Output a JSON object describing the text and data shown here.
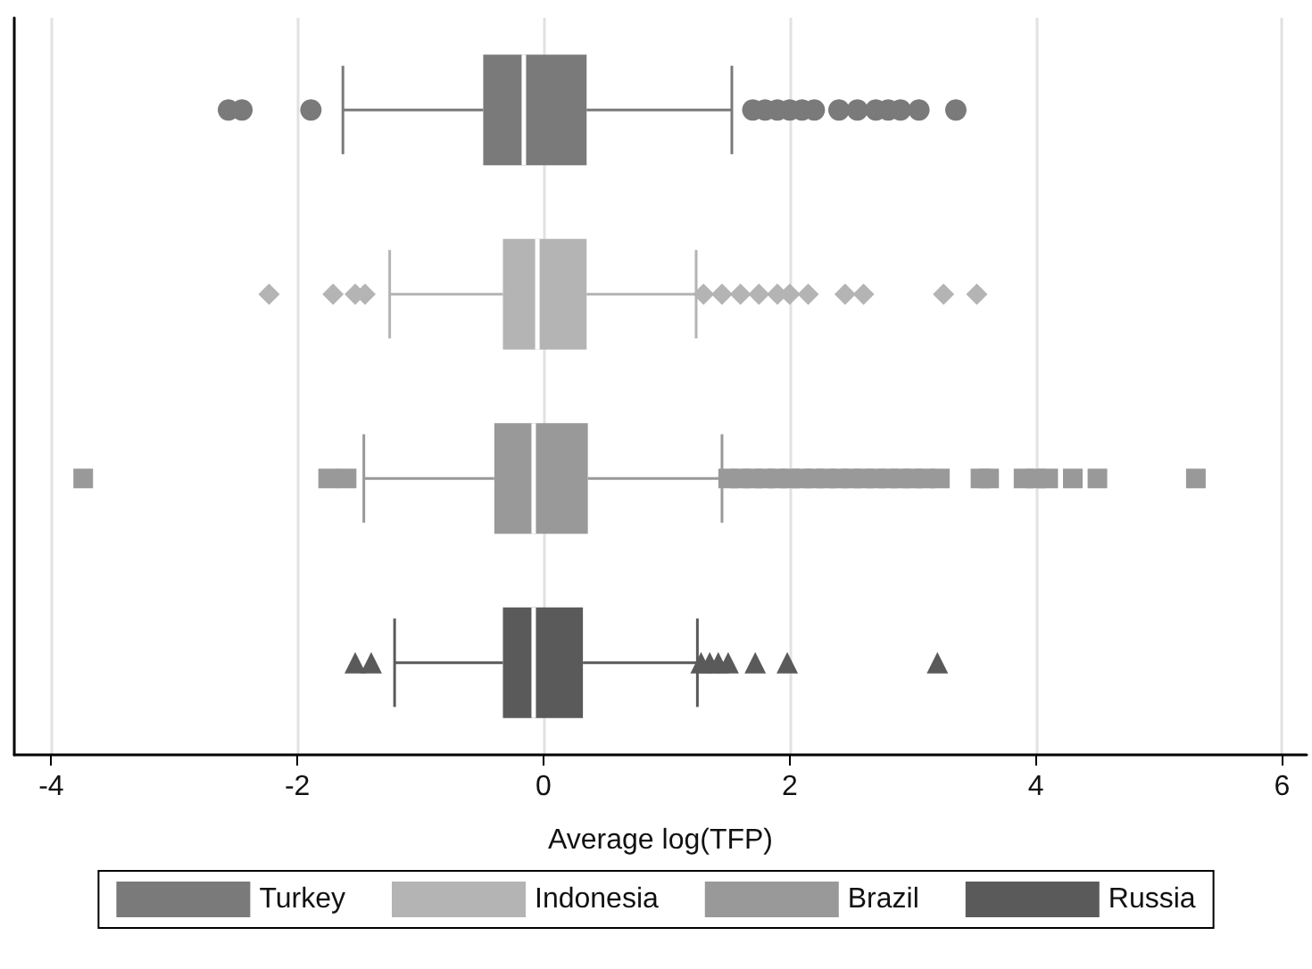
{
  "chart_data": {
    "type": "box",
    "orientation": "horizontal",
    "xlabel": "Average log(TFP)",
    "categories": [
      null,
      null,
      null,
      null
    ],
    "xlim": [
      -4.3,
      6.2
    ],
    "xticks": [
      -4,
      -2,
      0,
      2,
      4,
      6
    ],
    "grid": "x",
    "legend": "bottom",
    "tick_labels": "x",
    "series": [
      {
        "name": "Turkey",
        "color": "#7a7a7a",
        "marker": "circle",
        "boxes": [
          {
            "low": -1.63,
            "q1": -0.49,
            "median": -0.16,
            "q3": 0.35,
            "high": 1.53,
            "outliers": [
              -2.56,
              -2.45,
              -1.89,
              1.7,
              1.8,
              1.9,
              2.0,
              2.1,
              2.2,
              2.4,
              2.55,
              2.7,
              2.8,
              2.9,
              3.05,
              3.35
            ]
          },
          null,
          null,
          null
        ]
      },
      {
        "name": "Indonesia",
        "color": "#b4b4b4",
        "marker": "diamond",
        "boxes": [
          null,
          {
            "low": -1.25,
            "q1": -0.33,
            "median": -0.05,
            "q3": 0.35,
            "high": 1.24,
            "outliers": [
              -2.23,
              -1.71,
              -1.53,
              -1.45,
              1.3,
              1.45,
              1.6,
              1.75,
              1.9,
              2.0,
              2.15,
              2.45,
              2.6,
              3.25,
              3.52
            ]
          },
          null,
          null
        ]
      },
      {
        "name": "Brazil",
        "color": "#999999",
        "marker": "square",
        "boxes": [
          null,
          null,
          {
            "low": -1.46,
            "q1": -0.4,
            "median": -0.08,
            "q3": 0.36,
            "high": 1.45,
            "outliers": [
              -3.74,
              -1.75,
              -1.6,
              1.5,
              1.6,
              1.7,
              1.8,
              1.9,
              2.0,
              2.1,
              2.2,
              2.3,
              2.4,
              2.5,
              2.6,
              2.7,
              2.8,
              2.9,
              3.0,
              3.1,
              3.22,
              3.55,
              3.62,
              3.9,
              4.0,
              4.1,
              4.3,
              4.5,
              5.3
            ]
          },
          null
        ]
      },
      {
        "name": "Russia",
        "color": "#5a5a5a",
        "marker": "triangle",
        "boxes": [
          null,
          null,
          null,
          {
            "low": -1.21,
            "q1": -0.33,
            "median": -0.08,
            "q3": 0.32,
            "high": 1.25,
            "outliers": [
              -1.53,
              -1.4,
              1.28,
              1.35,
              1.42,
              1.5,
              1.72,
              1.98,
              3.2
            ]
          }
        ]
      }
    ]
  }
}
